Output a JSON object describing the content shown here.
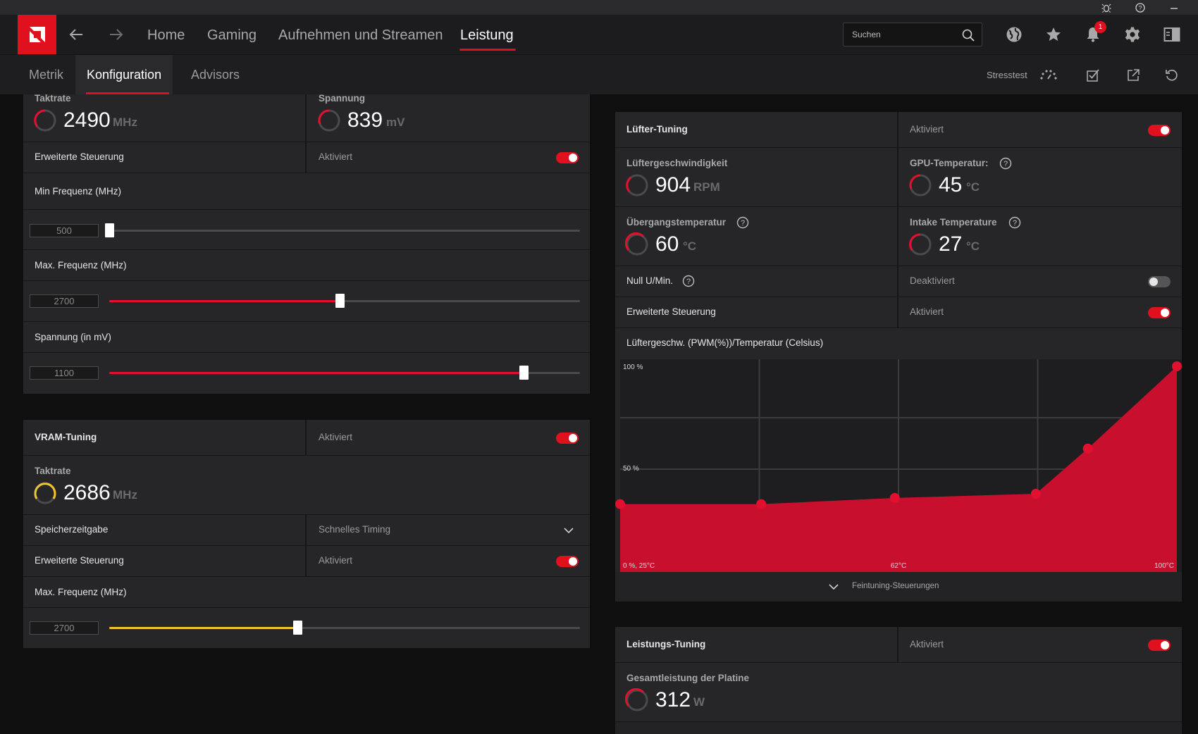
{
  "header": {
    "nav": [
      "Home",
      "Gaming",
      "Aufnehmen und Streamen",
      "Leistung"
    ],
    "active_nav": "Leistung",
    "search_placeholder": "Suchen",
    "notification_count": "1"
  },
  "subnav": {
    "tabs": [
      "Metrik",
      "Konfiguration",
      "Advisors"
    ],
    "active_tab": "Konfiguration",
    "stresstest": "Stresstest"
  },
  "gpu_tuning": {
    "clock_label": "Taktrate",
    "clock_value": "2490",
    "clock_unit": "MHz",
    "voltage_label": "Spannung",
    "voltage_value": "839",
    "voltage_unit": "mV",
    "advanced_label": "Erweiterte Steuerung",
    "advanced_state": "Aktiviert",
    "min_freq_label": "Min Frequenz (MHz)",
    "min_freq_value": "500",
    "min_freq_fraction": 0.0,
    "max_freq_label": "Max. Frequenz (MHz)",
    "max_freq_value": "2700",
    "max_freq_fraction": 0.49,
    "voltage_slider_label": "Spannung (in mV)",
    "voltage_slider_value": "1100",
    "voltage_slider_fraction": 0.88
  },
  "vram_tuning": {
    "title": "VRAM-Tuning",
    "state": "Aktiviert",
    "clock_label": "Taktrate",
    "clock_value": "2686",
    "clock_unit": "MHz",
    "memory_timing_label": "Speicherzeitgabe",
    "memory_timing_value": "Schnelles Timing",
    "advanced_label": "Erweiterte Steuerung",
    "advanced_state": "Aktiviert",
    "max_freq_label": "Max. Frequenz (MHz)",
    "max_freq_value": "2700",
    "max_freq_fraction": 0.4
  },
  "fan_tuning": {
    "title": "Lüfter-Tuning",
    "state": "Aktiviert",
    "fan_speed_label": "Lüftergeschwindigkeit",
    "fan_speed_value": "904",
    "fan_speed_unit": "RPM",
    "gpu_temp_label": "GPU-Temperatur:",
    "gpu_temp_value": "45",
    "gpu_temp_unit": "°C",
    "junction_label": "Übergangstemperatur",
    "junction_value": "60",
    "junction_unit": "°C",
    "intake_label": "Intake Temperature",
    "intake_value": "27",
    "intake_unit": "°C",
    "zero_rpm_label": "Null U/Min.",
    "zero_rpm_state": "Deaktiviert",
    "advanced_label": "Erweiterte Steuerung",
    "advanced_state": "Aktiviert",
    "curve_label": "Lüftergeschw. (PWM(%))/Temperatur (Celsius)",
    "fine_tune": "Feintuning-Steuerungen"
  },
  "power_tuning": {
    "title": "Leistungs-Tuning",
    "state": "Aktiviert",
    "board_power_label": "Gesamtleistung der Platine",
    "board_power_value": "312",
    "board_power_unit": "W"
  },
  "chart_data": {
    "type": "area",
    "title": "",
    "xlabel": "",
    "ylabel": "",
    "y_tick_labels": [
      "100 %",
      "50 %"
    ],
    "x_tick_labels": [
      "0 %, 25°C",
      "62°C",
      "100°C"
    ],
    "xlim": [
      25,
      100
    ],
    "ylim": [
      0,
      100
    ],
    "x": [
      25,
      44,
      62,
      81,
      88,
      100
    ],
    "y": [
      33,
      33,
      36,
      38,
      60,
      100
    ],
    "color": "#c8102e"
  }
}
